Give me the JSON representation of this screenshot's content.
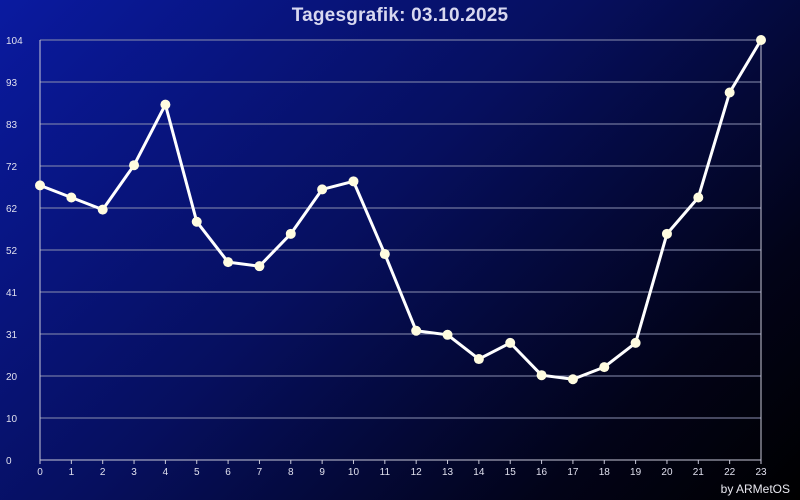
{
  "footer": {
    "credit": "by ARMetOS"
  },
  "colors": {
    "line": "#ffffff",
    "marker": "#fffce0",
    "grid": "#8a8fb0",
    "axis": "#c8c8d8",
    "text": "#e0e0ee"
  },
  "chart_data": {
    "type": "line",
    "title": "Tagesgrafik: 03.10.2025",
    "xlabel": "",
    "ylabel": "",
    "x": [
      0,
      1,
      2,
      3,
      4,
      5,
      6,
      7,
      8,
      9,
      10,
      11,
      12,
      13,
      14,
      15,
      16,
      17,
      18,
      19,
      20,
      21,
      22,
      23
    ],
    "series": [
      {
        "values": [
          68,
          65,
          62,
          73,
          88,
          59,
          49,
          48,
          56,
          67,
          69,
          51,
          32,
          31,
          25,
          29,
          21,
          20,
          23,
          29,
          56,
          65,
          91,
          104
        ]
      }
    ],
    "y_ticks": [
      0,
      10,
      20,
      31,
      41,
      52,
      62,
      72,
      83,
      93,
      104
    ],
    "x_ticks": [
      "0",
      "1",
      "2",
      "3",
      "4",
      "5",
      "6",
      "7",
      "8",
      "9",
      "10",
      "11",
      "12",
      "13",
      "14",
      "15",
      "16",
      "17",
      "18",
      "19",
      "20",
      "21",
      "22",
      "23"
    ],
    "ylim": [
      0,
      104
    ],
    "xlim": [
      0,
      23
    ],
    "grid": true,
    "legend": "none"
  }
}
